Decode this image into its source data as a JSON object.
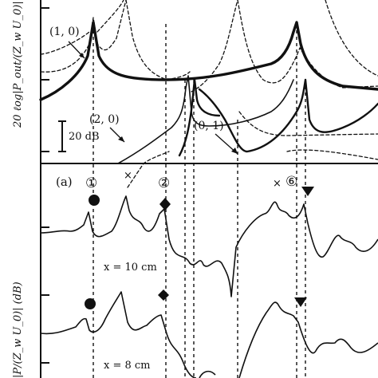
{
  "figure": {
    "top_ylabel": "20 ℓog|P_out/(Z_w U_0)| (dB)",
    "bottom_ylabel": "|P/(Z_w U_0)| (dB)",
    "scale_bar_label": "20 dB",
    "panel_label": "(a)"
  },
  "chart_data": [
    {
      "type": "line",
      "panel": "top",
      "grid": false,
      "series": [
        {
          "name": "(1, 0)",
          "style": "solid-thick",
          "color": "#111111"
        },
        {
          "name": "(2, 0)",
          "style": "solid-thin",
          "color": "#111111"
        },
        {
          "name": "(0, 1)",
          "style": "solid-thick",
          "color": "#111111"
        },
        {
          "name": "",
          "style": "dashed",
          "color": "#111111"
        }
      ],
      "resonance_labels": [
        "(1, 0)",
        "(2, 0)",
        "(0, 1)"
      ]
    },
    {
      "type": "line",
      "panel": "bottom",
      "grid": false,
      "peak_labels": [
        "①",
        "×",
        "②",
        "×",
        "⑥"
      ],
      "marker_names": [
        "circle",
        "diamond",
        "triangle-down"
      ],
      "series": [
        {
          "name": "x = 10 cm",
          "style": "solid",
          "color": "#111111"
        },
        {
          "name": "x = 8 cm",
          "style": "solid",
          "color": "#111111"
        }
      ]
    }
  ]
}
